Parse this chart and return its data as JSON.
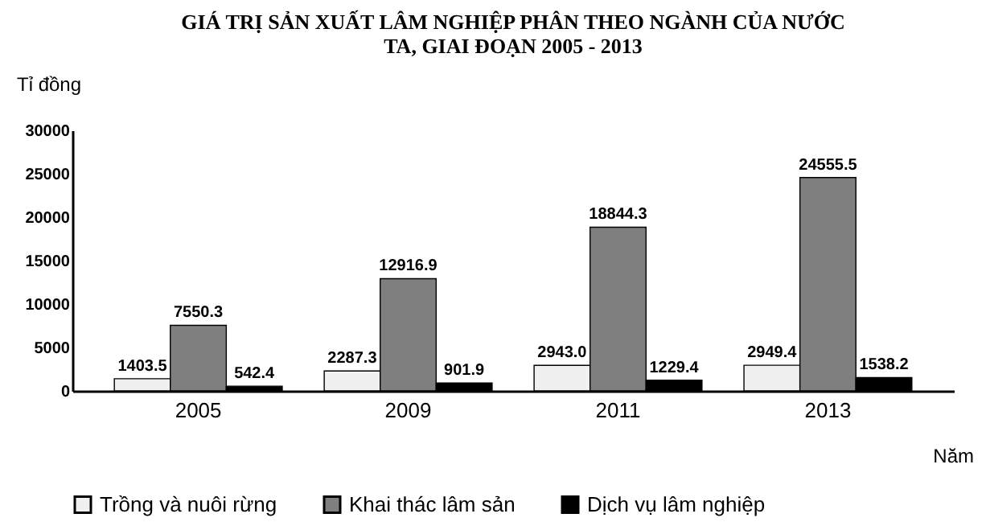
{
  "chart_data": {
    "type": "bar",
    "title": "GIÁ TRỊ SẢN XUẤT LÂM NGHIỆP PHÂN THEO NGÀNH CỦA NƯỚC TA, GIAI ĐOẠN 2005 - 2013",
    "ylabel": "Tỉ đồng",
    "xlabel": "Năm",
    "categories": [
      "2005",
      "2009",
      "2011",
      "2013"
    ],
    "series": [
      {
        "name": "Trồng và nuôi rừng",
        "color": "#f0f0f0",
        "values": [
          1403.5,
          2287.3,
          2943.0,
          2949.4
        ],
        "value_labels": [
          "1403.5",
          "2287.3",
          "2943.0",
          "2949.4"
        ]
      },
      {
        "name": "Khai thác lâm sản",
        "color": "#7f7f7f",
        "values": [
          7550.3,
          12916.9,
          18844.3,
          24555.5
        ],
        "value_labels": [
          "7550.3",
          "12916.9",
          "18844.3",
          "24555.5"
        ]
      },
      {
        "name": "Dịch vụ lâm nghiệp",
        "color": "#000000",
        "values": [
          542.4,
          901.9,
          1229.4,
          1538.2
        ],
        "value_labels": [
          "542.4",
          "901.9",
          "1229.4",
          "1538.2"
        ]
      }
    ],
    "ylim": [
      0,
      30000
    ],
    "yticks": [
      0,
      5000,
      10000,
      15000,
      20000,
      25000,
      30000
    ],
    "grid": false,
    "legend": "bottom"
  }
}
